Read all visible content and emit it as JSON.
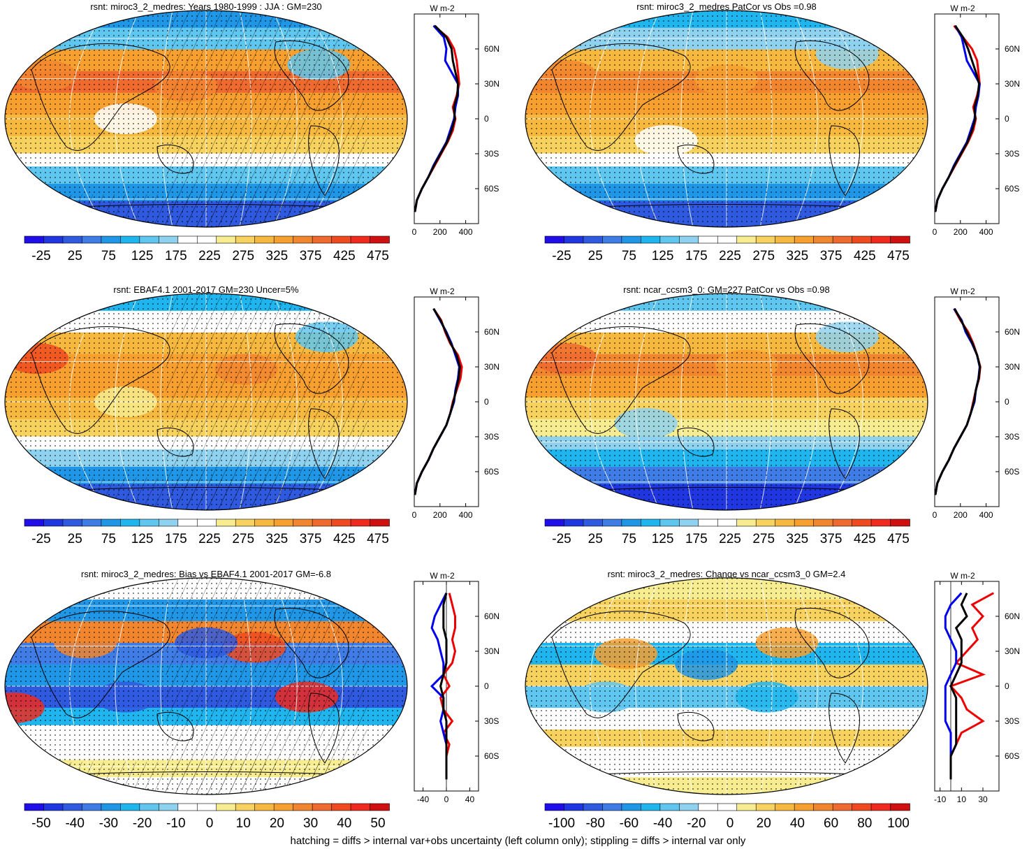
{
  "colors": {
    "scale": [
      "#1f0ee8",
      "#1f36e0",
      "#2f5ae0",
      "#3f7ce6",
      "#1f96e6",
      "#1fb6ef",
      "#5fc6ef",
      "#8fd2ef",
      "#ffffff",
      "#ffffff",
      "#f7ec8f",
      "#f7d25f",
      "#f7b83f",
      "#f79f2f",
      "#f2862f",
      "#ef6a2f",
      "#ef4a1f",
      "#ef2a1f",
      "#cf1010"
    ],
    "model_line": "#0000ee",
    "obs_line": "#ee0000",
    "mmm_line": "#000000"
  },
  "panels": [
    {
      "id": "p1",
      "title": "rsnt: miroc3_2_medres: Years 1980-1999 : JJA : GM=230",
      "hatching": "hatched+stippled",
      "colorbar_labels": [
        "-25",
        "25",
        "75",
        "125",
        "175",
        "225",
        "275",
        "325",
        "375",
        "425",
        "475"
      ],
      "zonal_x_ticks": [
        "0",
        "200",
        "400"
      ],
      "zonal_x_range": [
        0,
        500
      ],
      "zonal_y_ticks": [
        "60N",
        "30N",
        "0",
        "30S",
        "60S"
      ],
      "zonal_units": "W m-2",
      "zonal_profile": {
        "lat": [
          80,
          70,
          60,
          50,
          40,
          30,
          20,
          10,
          0,
          -10,
          -20,
          -30,
          -40,
          -50,
          -60,
          -70,
          -80
        ],
        "model": [
          150,
          230,
          250,
          240,
          290,
          340,
          340,
          320,
          310,
          280,
          250,
          200,
          150,
          110,
          60,
          20,
          5
        ],
        "obs": [
          150,
          260,
          310,
          330,
          340,
          350,
          330,
          300,
          320,
          300,
          260,
          210,
          160,
          110,
          60,
          20,
          5
        ],
        "mmm": [
          160,
          250,
          290,
          300,
          320,
          340,
          335,
          310,
          315,
          290,
          255,
          205,
          155,
          110,
          60,
          20,
          5
        ]
      }
    },
    {
      "id": "p2",
      "title": "rsnt: miroc3_2_medres PatCor vs Obs =0.98",
      "hatching": "stippled",
      "colorbar_labels": [
        "-25",
        "25",
        "75",
        "125",
        "175",
        "225",
        "275",
        "325",
        "375",
        "425",
        "475"
      ],
      "zonal_x_ticks": [
        "0",
        "200",
        "400"
      ],
      "zonal_x_range": [
        0,
        500
      ],
      "zonal_y_ticks": [
        "60N",
        "30N",
        "0",
        "30S",
        "60S"
      ],
      "zonal_units": "W m-2",
      "zonal_profile": {
        "lat": [
          80,
          70,
          60,
          50,
          40,
          30,
          20,
          10,
          0,
          -10,
          -20,
          -30,
          -40,
          -50,
          -60,
          -70,
          -80
        ],
        "model": [
          160,
          210,
          230,
          250,
          300,
          350,
          340,
          320,
          310,
          280,
          250,
          200,
          150,
          110,
          60,
          20,
          5
        ],
        "obs": [
          150,
          220,
          290,
          330,
          340,
          350,
          330,
          300,
          320,
          300,
          260,
          210,
          160,
          110,
          60,
          20,
          5
        ],
        "mmm": [
          160,
          220,
          260,
          290,
          320,
          345,
          335,
          310,
          315,
          290,
          255,
          205,
          155,
          110,
          60,
          20,
          5
        ]
      }
    },
    {
      "id": "p3",
      "title": "rsnt: EBAF4.1 2001-2017 GM=230 Uncer=5%",
      "hatching": "hatched+stippled",
      "colorbar_labels": [
        "-25",
        "25",
        "75",
        "125",
        "175",
        "225",
        "275",
        "325",
        "375",
        "425",
        "475"
      ],
      "zonal_x_ticks": [
        "0",
        "200",
        "400"
      ],
      "zonal_x_range": [
        0,
        500
      ],
      "zonal_y_ticks": [
        "60N",
        "30N",
        "0",
        "30S",
        "60S"
      ],
      "zonal_units": "W m-2",
      "zonal_profile": {
        "lat": [
          80,
          70,
          60,
          50,
          40,
          30,
          20,
          10,
          0,
          -10,
          -20,
          -30,
          -40,
          -50,
          -60,
          -70,
          -80
        ],
        "model": [
          150,
          200,
          250,
          290,
          320,
          350,
          340,
          320,
          310,
          280,
          250,
          200,
          150,
          110,
          60,
          20,
          5
        ],
        "obs": [
          150,
          210,
          240,
          280,
          340,
          370,
          360,
          330,
          300,
          280,
          250,
          200,
          150,
          110,
          60,
          20,
          5
        ],
        "mmm": [
          150,
          205,
          245,
          285,
          330,
          355,
          345,
          325,
          305,
          280,
          250,
          200,
          150,
          110,
          60,
          20,
          5
        ]
      }
    },
    {
      "id": "p4",
      "title": "rsnt: ncar_ccsm3_0: GM=227 PatCor vs Obs =0.98",
      "hatching": "stippled",
      "colorbar_labels": [
        "-25",
        "25",
        "75",
        "125",
        "175",
        "225",
        "275",
        "325",
        "375",
        "425",
        "475"
      ],
      "zonal_x_ticks": [
        "0",
        "200",
        "400"
      ],
      "zonal_x_range": [
        0,
        500
      ],
      "zonal_y_ticks": [
        "60N",
        "30N",
        "0",
        "30S",
        "60S"
      ],
      "zonal_units": "W m-2",
      "zonal_profile": {
        "lat": [
          80,
          70,
          60,
          50,
          40,
          30,
          20,
          10,
          0,
          -10,
          -20,
          -30,
          -40,
          -50,
          -60,
          -70,
          -80
        ],
        "model": [
          150,
          210,
          240,
          290,
          330,
          350,
          340,
          320,
          310,
          280,
          250,
          200,
          150,
          110,
          60,
          20,
          5
        ],
        "obs": [
          150,
          200,
          260,
          300,
          330,
          355,
          345,
          320,
          300,
          280,
          250,
          200,
          150,
          110,
          60,
          20,
          5
        ],
        "mmm": [
          155,
          205,
          250,
          295,
          330,
          352,
          342,
          320,
          305,
          280,
          250,
          200,
          150,
          110,
          60,
          20,
          5
        ]
      }
    },
    {
      "id": "p5",
      "title": "rsnt: miroc3_2_medres: Bias vs EBAF4.1 2001-2017 GM=-6.8",
      "hatching": "hatched+stippled",
      "colorbar_labels": [
        "-50",
        "-40",
        "-30",
        "-20",
        "-10",
        "0",
        "10",
        "20",
        "30",
        "40",
        "50"
      ],
      "zonal_x_ticks": [
        "-40",
        "0",
        "40"
      ],
      "zonal_x_range": [
        -55,
        55
      ],
      "zonal_y_ticks": [
        "60N",
        "30N",
        "0",
        "30S",
        "60S"
      ],
      "zonal_units": "W m-2",
      "zonal_profile": {
        "lat": [
          80,
          70,
          60,
          50,
          40,
          30,
          20,
          10,
          0,
          -10,
          -20,
          -30,
          -40,
          -50,
          -60,
          -70,
          -80
        ],
        "model": [
          0,
          -10,
          -20,
          -25,
          -15,
          -10,
          -5,
          -5,
          -25,
          -5,
          -5,
          -10,
          -5,
          0,
          0,
          0,
          0
        ],
        "obs": [
          5,
          10,
          15,
          15,
          10,
          15,
          10,
          -5,
          5,
          -10,
          -5,
          10,
          -5,
          5,
          0,
          0,
          0
        ],
        "mmm": [
          0,
          -5,
          -5,
          -5,
          0,
          0,
          0,
          -5,
          -10,
          -5,
          -5,
          0,
          0,
          0,
          0,
          0,
          0
        ]
      }
    },
    {
      "id": "p6",
      "title": "rsnt: miroc3_2_medres: Change vs ncar_ccsm3_0 GM=2.4",
      "hatching": "stippled",
      "colorbar_labels": [
        "-100",
        "-80",
        "-60",
        "-40",
        "-20",
        "0",
        "20",
        "40",
        "60",
        "80",
        "100"
      ],
      "zonal_x_ticks": [
        "-10",
        "10",
        "30"
      ],
      "zonal_x_range": [
        -15,
        45
      ],
      "zonal_y_ticks": [
        "60N",
        "30N",
        "0",
        "30S",
        "60S"
      ],
      "zonal_units": "W m-2",
      "zonal_profile": {
        "lat": [
          80,
          70,
          60,
          50,
          40,
          30,
          20,
          10,
          0,
          -10,
          -20,
          -30,
          -40,
          -50,
          -60,
          -70,
          -80
        ],
        "model": [
          10,
          0,
          -5,
          -5,
          0,
          5,
          5,
          0,
          -5,
          -5,
          -5,
          -5,
          0,
          0,
          0,
          0,
          0
        ],
        "obs": [
          40,
          20,
          30,
          20,
          25,
          15,
          5,
          30,
          0,
          10,
          15,
          30,
          10,
          5,
          0,
          0,
          0
        ],
        "mmm": [
          15,
          10,
          15,
          5,
          10,
          10,
          10,
          5,
          0,
          5,
          5,
          5,
          5,
          5,
          0,
          0,
          0
        ]
      }
    }
  ],
  "footer": "hatching = diffs > internal var+obs uncertainty (left column only); stippling = diffs > internal var only"
}
